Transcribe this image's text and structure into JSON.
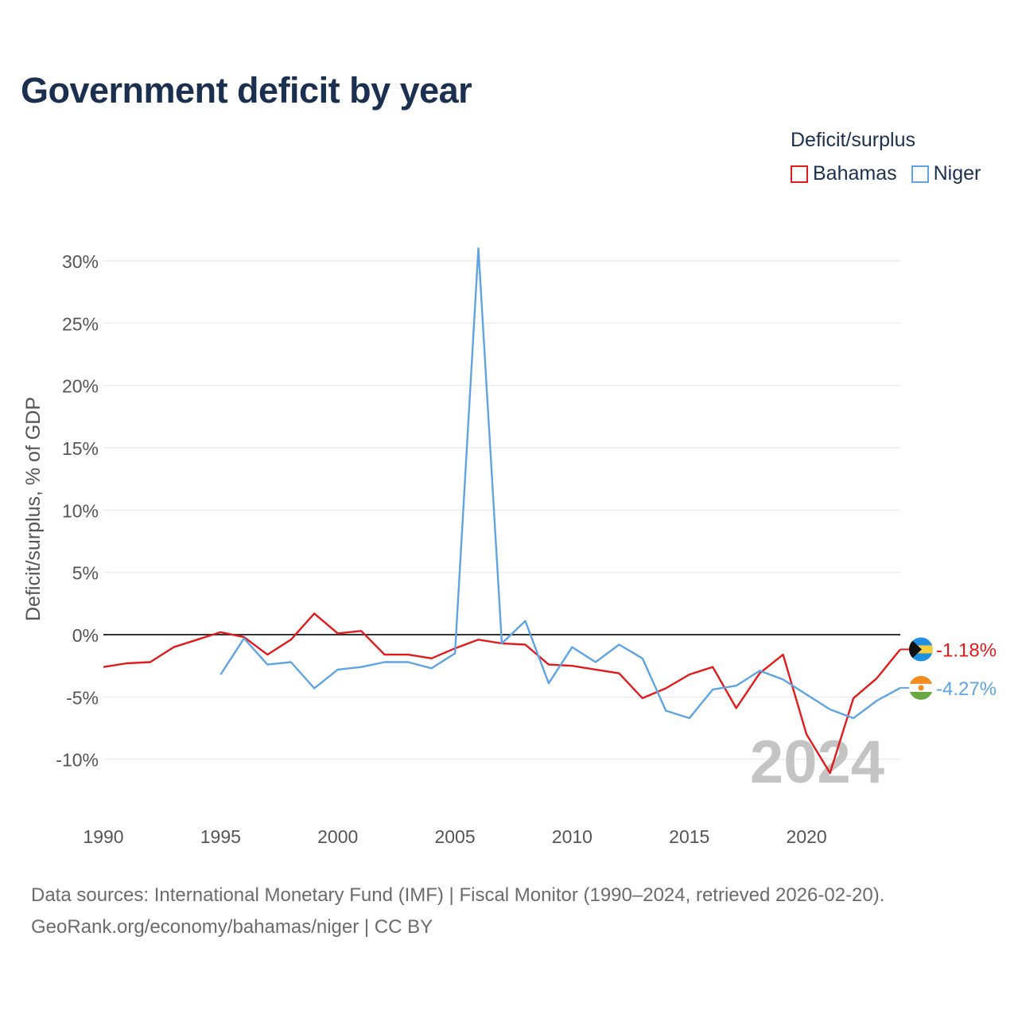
{
  "title": "Government deficit by year",
  "legend": {
    "title": "Deficit/surplus",
    "items": [
      {
        "name": "Bahamas",
        "color": "#e31a1c"
      },
      {
        "name": "Niger",
        "color": "#5fa4e2"
      }
    ]
  },
  "footer": {
    "line1": "Data sources: International Monetary Fund (IMF) | Fiscal Monitor (1990–2024, retrieved 2026-02-20).",
    "line2": "GeoRank.org/economy/bahamas/niger | CC BY"
  },
  "chart_data": {
    "type": "line",
    "title": "Government deficit by year",
    "ylabel": "Deficit/surplus, % of GDP",
    "xlabel": "",
    "xlim": [
      1990,
      2024
    ],
    "ylim": [
      -14,
      32
    ],
    "x_ticks": [
      "1990",
      "1995",
      "2000",
      "2005",
      "2010",
      "2015",
      "2020"
    ],
    "x_tick_values": [
      1990,
      1995,
      2000,
      2005,
      2010,
      2015,
      2020
    ],
    "y_ticks": [
      "30%",
      "25%",
      "20%",
      "15%",
      "10%",
      "5%",
      "0%",
      "-5%",
      "-10%"
    ],
    "y_tick_values": [
      30,
      25,
      20,
      15,
      10,
      5,
      0,
      -5,
      -10
    ],
    "watermark": "2024",
    "series": [
      {
        "name": "Bahamas",
        "color": "#e31a1c",
        "end_label": "-1.18%",
        "points": [
          [
            1990,
            -2.6
          ],
          [
            1991,
            -2.3
          ],
          [
            1992,
            -2.2
          ],
          [
            1993,
            -1.0
          ],
          [
            1994,
            -0.4
          ],
          [
            1995,
            0.2
          ],
          [
            1996,
            -0.2
          ],
          [
            1997,
            -1.6
          ],
          [
            1998,
            -0.4
          ],
          [
            1999,
            1.7
          ],
          [
            2000,
            0.1
          ],
          [
            2001,
            0.3
          ],
          [
            2002,
            -1.6
          ],
          [
            2003,
            -1.6
          ],
          [
            2004,
            -1.9
          ],
          [
            2005,
            -1.1
          ],
          [
            2006,
            -0.4
          ],
          [
            2007,
            -0.7
          ],
          [
            2008,
            -0.8
          ],
          [
            2009,
            -2.4
          ],
          [
            2010,
            -2.5
          ],
          [
            2011,
            -2.8
          ],
          [
            2012,
            -3.1
          ],
          [
            2013,
            -5.1
          ],
          [
            2014,
            -4.3
          ],
          [
            2015,
            -3.2
          ],
          [
            2016,
            -2.6
          ],
          [
            2017,
            -5.9
          ],
          [
            2018,
            -3.1
          ],
          [
            2019,
            -1.6
          ],
          [
            2020,
            -8.0
          ],
          [
            2021,
            -11.1
          ],
          [
            2022,
            -5.1
          ],
          [
            2023,
            -3.5
          ],
          [
            2024,
            -1.18
          ]
        ]
      },
      {
        "name": "Niger",
        "color": "#5fa4e2",
        "end_label": "-4.27%",
        "points": [
          [
            1995,
            -3.2
          ],
          [
            1996,
            -0.3
          ],
          [
            1997,
            -2.4
          ],
          [
            1998,
            -2.2
          ],
          [
            1999,
            -4.3
          ],
          [
            2000,
            -2.8
          ],
          [
            2001,
            -2.6
          ],
          [
            2002,
            -2.2
          ],
          [
            2003,
            -2.2
          ],
          [
            2004,
            -2.7
          ],
          [
            2005,
            -1.5
          ],
          [
            2006,
            31.0
          ],
          [
            2007,
            -0.7
          ],
          [
            2008,
            1.1
          ],
          [
            2009,
            -3.9
          ],
          [
            2010,
            -1.0
          ],
          [
            2011,
            -2.2
          ],
          [
            2012,
            -0.8
          ],
          [
            2013,
            -1.9
          ],
          [
            2014,
            -6.1
          ],
          [
            2015,
            -6.7
          ],
          [
            2016,
            -4.4
          ],
          [
            2017,
            -4.1
          ],
          [
            2018,
            -2.9
          ],
          [
            2019,
            -3.6
          ],
          [
            2020,
            -4.8
          ],
          [
            2021,
            -6.0
          ],
          [
            2022,
            -6.7
          ],
          [
            2023,
            -5.3
          ],
          [
            2024,
            -4.27
          ]
        ]
      }
    ]
  }
}
